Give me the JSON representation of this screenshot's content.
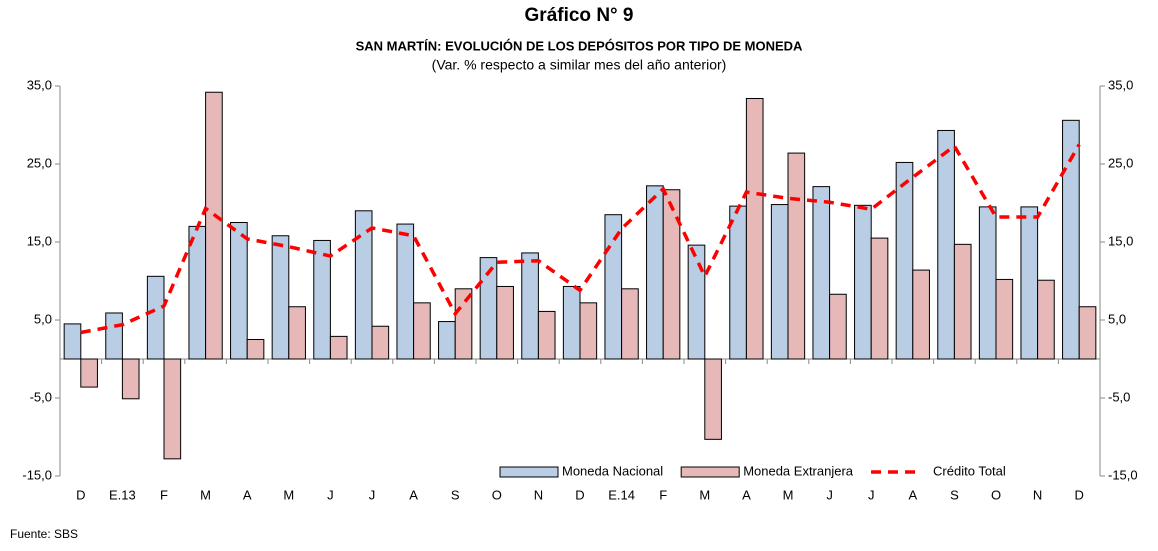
{
  "chart_data": {
    "type": "bar",
    "title": "Gráfico N° 9",
    "subtitle": "SAN MARTÍN: EVOLUCIÓN DE LOS DEPÓSITOS POR TIPO DE MONEDA",
    "note": "(Var. % respecto a similar mes del año anterior)",
    "source": "Fuente: SBS",
    "categories": [
      "D",
      "E.13",
      "F",
      "M",
      "A",
      "M",
      "J",
      "J",
      "A",
      "S",
      "O",
      "N",
      "D",
      "E.14",
      "F",
      "M",
      "A",
      "M",
      "J",
      "J",
      "A",
      "S",
      "O",
      "N",
      "D"
    ],
    "series": [
      {
        "name": "Moneda Nacional",
        "type": "bar",
        "color": "#b9cde5",
        "values": [
          4.5,
          5.9,
          10.6,
          17.0,
          17.5,
          15.8,
          15.2,
          19.0,
          17.3,
          4.8,
          13.0,
          13.6,
          9.3,
          18.5,
          22.2,
          14.6,
          19.6,
          19.8,
          22.1,
          19.7,
          25.2,
          29.3,
          19.5,
          19.5,
          30.6
        ]
      },
      {
        "name": "Moneda Extranjera",
        "type": "bar",
        "color": "#e6b9b8",
        "values": [
          -3.6,
          -5.1,
          -12.8,
          34.2,
          2.5,
          6.7,
          2.9,
          4.2,
          7.2,
          9.0,
          9.3,
          6.1,
          7.2,
          9.0,
          21.7,
          -10.3,
          33.4,
          26.4,
          8.3,
          15.5,
          11.4,
          14.7,
          10.2,
          10.1,
          6.7
        ]
      },
      {
        "name": "Crédito Total",
        "type": "line",
        "color": "#ff0000",
        "values": [
          3.4,
          4.4,
          6.8,
          19.3,
          15.4,
          14.4,
          13.2,
          16.8,
          15.8,
          5.8,
          12.4,
          12.6,
          8.8,
          16.7,
          21.8,
          10.6,
          21.4,
          20.6,
          20.1,
          19.2,
          23.3,
          27.3,
          18.2,
          18.2,
          27.5
        ]
      }
    ],
    "ylim": [
      -15,
      35
    ],
    "yticks": [
      {
        "value": -15,
        "label": "-15,0"
      },
      {
        "value": -5,
        "label": "-5,0"
      },
      {
        "value": 5,
        "label": "5,0"
      },
      {
        "value": 15,
        "label": "15,0"
      },
      {
        "value": 25,
        "label": "25,0"
      },
      {
        "value": 35,
        "label": "35,0"
      }
    ],
    "y2lim": [
      -15,
      35
    ],
    "y2ticks": [
      {
        "value": -15,
        "label": "-15,0"
      },
      {
        "value": -5,
        "label": "-5,0"
      },
      {
        "value": 5,
        "label": "5,0"
      },
      {
        "value": 15,
        "label": "15,0"
      },
      {
        "value": 25,
        "label": "25,0"
      },
      {
        "value": 35,
        "label": "35,0"
      }
    ],
    "legend": "bottom-right"
  }
}
